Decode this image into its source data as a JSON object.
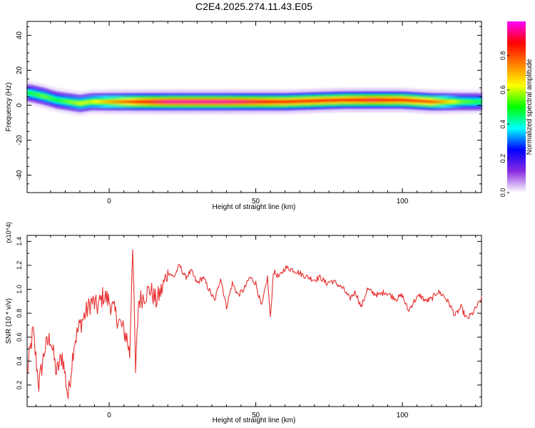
{
  "title": "C2E4.2025.274.11.43.E05",
  "chart_data": [
    {
      "type": "heatmap",
      "title": "C2E4.2025.274.11.43.E05",
      "xlabel": "Height of straight line (km)",
      "ylabel": "Frequency (Hz)",
      "xlim": [
        -28,
        127
      ],
      "ylim": [
        -50,
        48
      ],
      "x_ticks": [
        0,
        50,
        100
      ],
      "y_ticks": [
        -40,
        -20,
        0,
        20,
        40
      ],
      "colorbar": {
        "label": "Normalized spectral amplitude",
        "range": [
          0,
          1
        ],
        "ticks": [
          "0.0",
          "0.2",
          "0.4",
          "0.6",
          "0.8"
        ],
        "colors": [
          "#ffffff",
          "#8a2be2",
          "#0000ff",
          "#00ffff",
          "#00ff00",
          "#ffff00",
          "#ff8000",
          "#ff0000",
          "#ff00ff"
        ]
      },
      "band": {
        "x": [
          -27,
          -22,
          -18,
          -14,
          -10,
          -6,
          0,
          10,
          20,
          40,
          60,
          80,
          90,
          100,
          110,
          120,
          127
        ],
        "center_hz": [
          7,
          5,
          3,
          2,
          1,
          2,
          2,
          2,
          2,
          2,
          2,
          3,
          3,
          3,
          2,
          2,
          2
        ],
        "peak_amplitude": [
          0.5,
          0.55,
          0.5,
          0.55,
          0.6,
          0.6,
          0.7,
          0.85,
          0.95,
          0.95,
          0.85,
          0.85,
          0.9,
          0.85,
          0.8,
          0.55,
          0.5
        ]
      }
    },
    {
      "type": "line",
      "xlabel": "Height of straight line (km)",
      "ylabel": "SNR (10 * v/v)",
      "y_multiplier": "(x10^4)",
      "xlim": [
        -28,
        127
      ],
      "ylim": [
        0.02,
        1.45
      ],
      "x_ticks": [
        0,
        50,
        100
      ],
      "y_ticks": [
        0.2,
        0.4,
        0.6,
        0.8,
        1.0,
        1.2,
        1.4
      ],
      "color": "#e83030",
      "series": [
        {
          "x": [
            -28,
            -26,
            -24,
            -22,
            -20,
            -18,
            -16,
            -14,
            -12,
            -10,
            -8,
            -6,
            -4,
            -2,
            0,
            2,
            4,
            6,
            7,
            8,
            9,
            10,
            12,
            14,
            16,
            18,
            20,
            22,
            24,
            26,
            28,
            30,
            32,
            34,
            36,
            38,
            40,
            42,
            44,
            46,
            48,
            50,
            52,
            54,
            55,
            56,
            58,
            60,
            62,
            64,
            66,
            68,
            70,
            72,
            74,
            76,
            78,
            80,
            82,
            84,
            86,
            88,
            90,
            92,
            94,
            96,
            98,
            100,
            102,
            104,
            106,
            108,
            110,
            112,
            114,
            116,
            118,
            120,
            122,
            124,
            127
          ],
          "y": [
            0.3,
            0.65,
            0.2,
            0.5,
            0.6,
            0.3,
            0.45,
            0.1,
            0.55,
            0.7,
            0.8,
            0.9,
            0.85,
            0.95,
            0.9,
            0.8,
            0.7,
            0.6,
            0.45,
            1.4,
            0.3,
            0.9,
            0.95,
            1.0,
            0.9,
            1.0,
            1.15,
            1.1,
            1.2,
            1.1,
            1.15,
            1.05,
            1.1,
            1.0,
            0.9,
            1.1,
            0.85,
            1.05,
            0.95,
            1.0,
            1.1,
            1.05,
            0.85,
            1.1,
            0.75,
            1.15,
            1.1,
            1.18,
            1.17,
            1.15,
            1.12,
            1.1,
            1.08,
            1.1,
            1.05,
            1.07,
            1.04,
            1.0,
            0.92,
            0.98,
            0.85,
            1.0,
            0.97,
            0.95,
            0.98,
            0.95,
            0.92,
            0.95,
            0.82,
            0.9,
            0.95,
            0.9,
            0.92,
            0.98,
            0.95,
            0.88,
            0.78,
            0.85,
            0.75,
            0.8,
            0.92
          ]
        }
      ]
    }
  ]
}
